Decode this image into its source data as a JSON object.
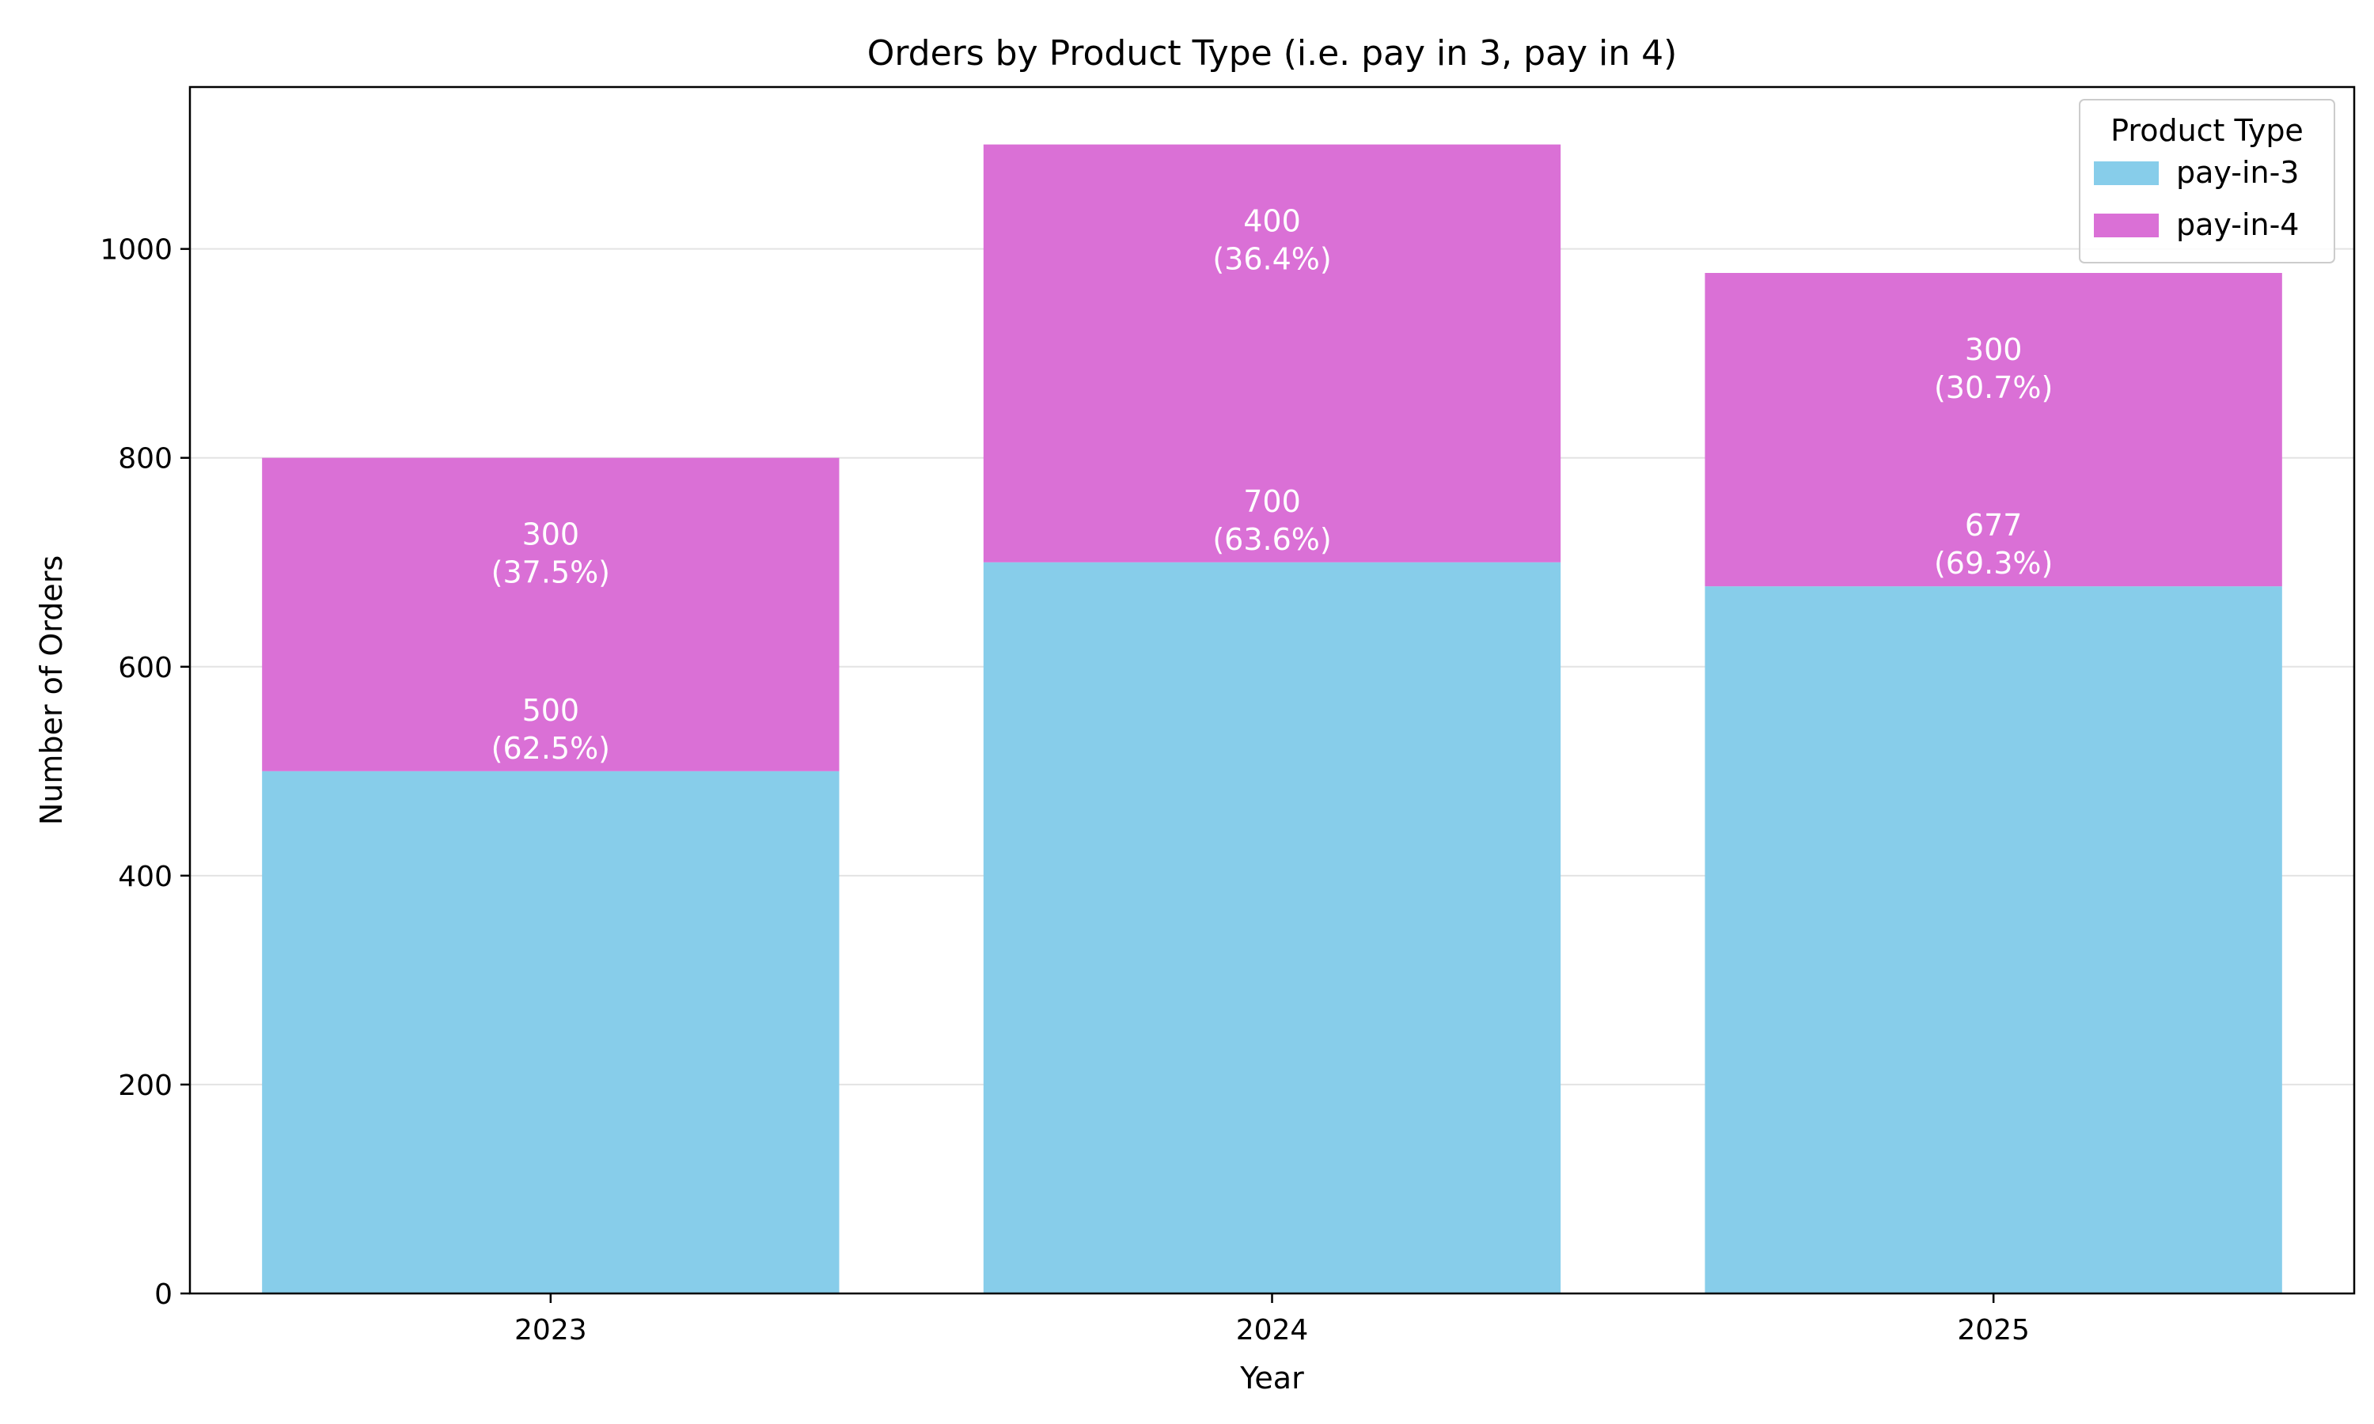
{
  "chart_data": {
    "type": "bar",
    "stacked": true,
    "title": "Orders by Product Type (i.e. pay in 3, pay in 4)",
    "xlabel": "Year",
    "ylabel": "Number of Orders",
    "categories": [
      "2023",
      "2024",
      "2025"
    ],
    "series": [
      {
        "name": "pay-in-3",
        "color": "#87CDEA",
        "values": [
          500,
          700,
          677
        ],
        "labels": [
          [
            "500",
            "(62.5%)"
          ],
          [
            "700",
            "(63.6%)"
          ],
          [
            "677",
            "(69.3%)"
          ]
        ]
      },
      {
        "name": "pay-in-4",
        "color": "#DA70D6",
        "values": [
          300,
          400,
          300
        ],
        "labels": [
          [
            "300",
            "(37.5%)"
          ],
          [
            "400",
            "(36.4%)"
          ],
          [
            "300",
            "(30.7%)"
          ]
        ]
      }
    ],
    "ylim": [
      0,
      1155
    ],
    "yticks": [
      0,
      200,
      400,
      600,
      800,
      1000
    ],
    "grid": "horizontal",
    "legend": {
      "title": "Product Type",
      "position": "top-right"
    }
  }
}
